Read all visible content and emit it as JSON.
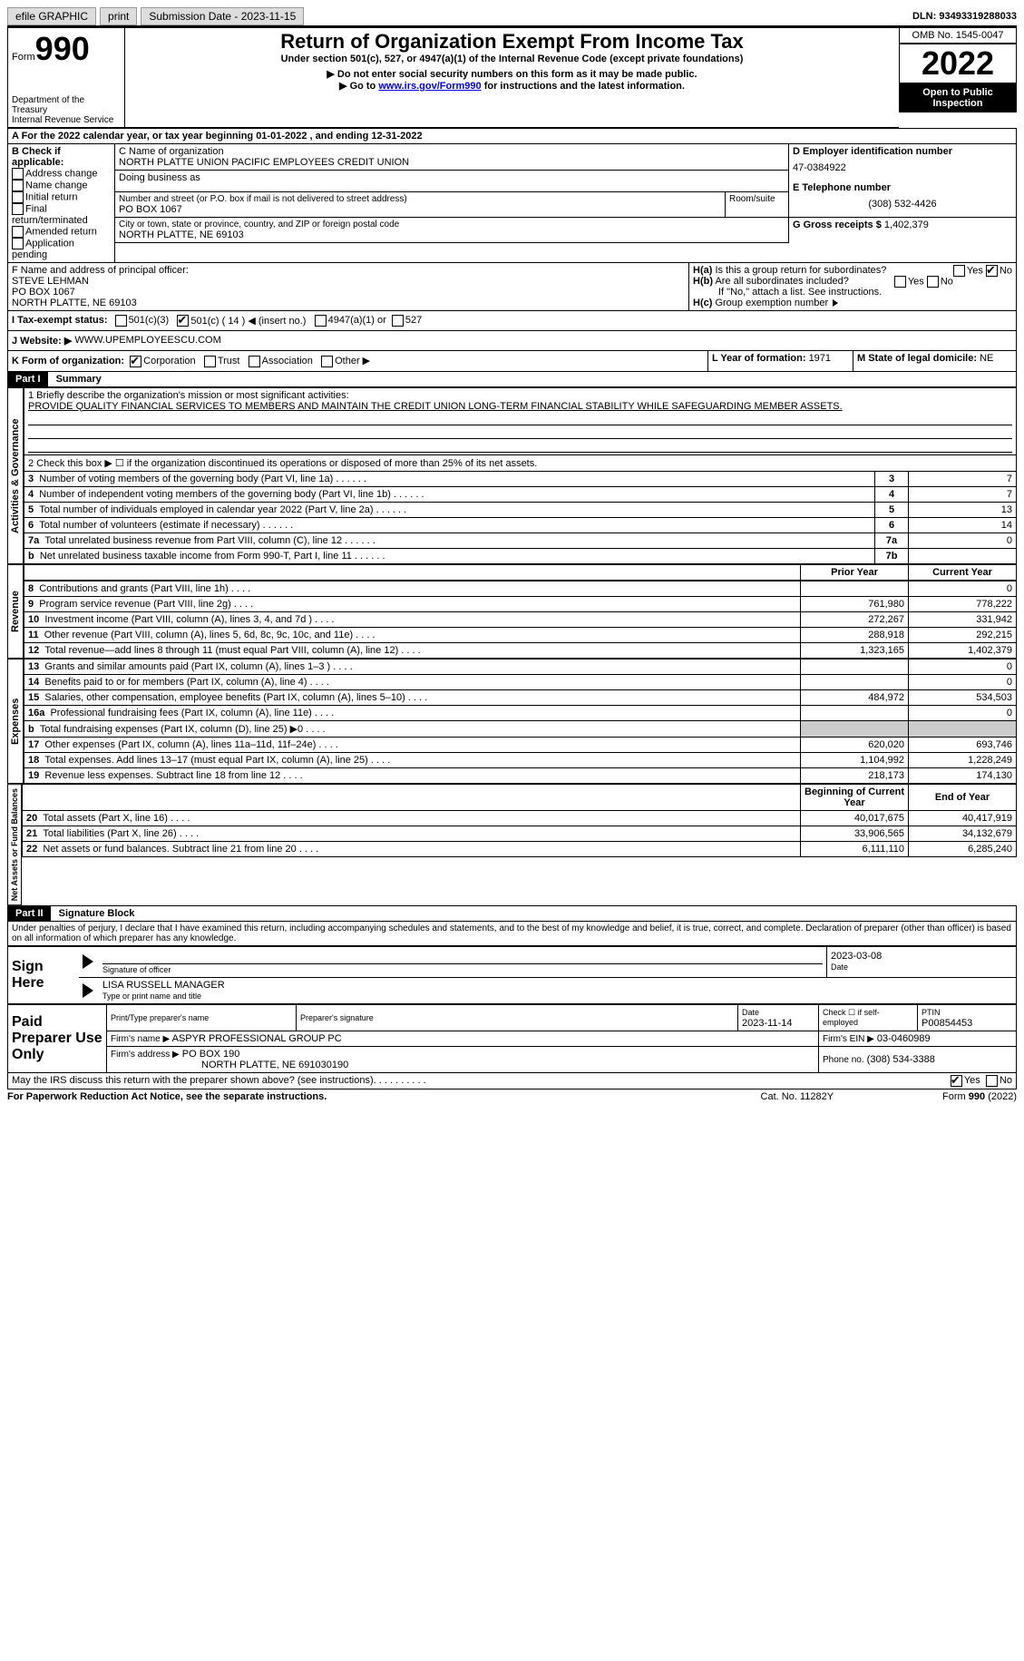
{
  "topbar": {
    "efile": "efile GRAPHIC",
    "print": "print",
    "subdate_label": "Submission Date - ",
    "subdate": "2023-11-15",
    "dln_label": "DLN: ",
    "dln": "93493319288033"
  },
  "header": {
    "form_label": "Form",
    "form_no": "990",
    "dept": "Department of the Treasury\nInternal Revenue Service",
    "title": "Return of Organization Exempt From Income Tax",
    "subtitle": "Under section 501(c), 527, or 4947(a)(1) of the Internal Revenue Code (except private foundations)",
    "warn1": "▶ Do not enter social security numbers on this form as it may be made public.",
    "warn2_pre": "▶ Go to ",
    "warn2_link": "www.irs.gov/Form990",
    "warn2_post": " for instructions and the latest information.",
    "omb": "OMB No. 1545-0047",
    "year": "2022",
    "inspection": "Open to Public Inspection"
  },
  "sectionA": {
    "a_line": "A For the 2022 calendar year, or tax year beginning 01-01-2022    , and ending 12-31-2022",
    "b_label": "B Check if applicable:",
    "b_items": [
      "Address change",
      "Name change",
      "Initial return",
      "Final return/terminated",
      "Amended return",
      "Application pending"
    ],
    "c_label": "C Name of organization",
    "c_name": "NORTH PLATTE UNION PACIFIC EMPLOYEES CREDIT UNION",
    "dba": "Doing business as",
    "addr_label": "Number and street (or P.O. box if mail is not delivered to street address)",
    "addr": "PO BOX 1067",
    "room_label": "Room/suite",
    "city_label": "City or town, state or province, country, and ZIP or foreign postal code",
    "city": "NORTH PLATTE, NE   69103",
    "d_label": "D Employer identification number",
    "ein": "47-0384922",
    "e_label": "E Telephone number",
    "phone": "(308) 532-4426",
    "g_label": "G Gross receipts $",
    "g_val": "1,402,379",
    "f_label": "F  Name and address of principal officer:",
    "f_name": "STEVE LEHMAN",
    "f_addr1": "PO BOX 1067",
    "f_addr2": "NORTH PLATTE, NE   69103",
    "ha": "H(a)  Is this a group return for subordinates?",
    "hb": "H(b)  Are all subordinates included?",
    "hb_note": "If \"No,\" attach a list. See instructions.",
    "hc": "H(c)  Group exemption number ▶",
    "yes": "Yes",
    "no": "No",
    "i_label": "I   Tax-exempt status:",
    "i_501c3": "501(c)(3)",
    "i_501c": "501(c) ( 14 ) ◀ (insert no.)",
    "i_4947": "4947(a)(1) or",
    "i_527": "527",
    "j_label": "J  Website: ▶",
    "j_val": "WWW.UPEMPLOYEESCU.COM",
    "k_label": "K Form of organization:",
    "k_corp": "Corporation",
    "k_trust": "Trust",
    "k_assoc": "Association",
    "k_other": "Other ▶",
    "l_label": "L Year of formation: ",
    "l_val": "1971",
    "m_label": "M State of legal domicile: ",
    "m_val": "NE"
  },
  "part1": {
    "title": "Part I",
    "heading": "Summary",
    "sections": {
      "gov": "Activities & Governance",
      "rev": "Revenue",
      "exp": "Expenses",
      "net": "Net Assets or Fund Balances"
    },
    "l1_label": "1  Briefly describe the organization's mission or most significant activities:",
    "l1_text": "PROVIDE QUALITY FINANCIAL SERVICES TO MEMBERS AND MAINTAIN THE CREDIT UNION LONG-TERM FINANCIAL STABILITY WHILE SAFEGUARDING MEMBER ASSETS.",
    "l2": "2   Check this box ▶ ☐  if the organization discontinued its operations or disposed of more than 25% of its net assets.",
    "rows_gov": [
      {
        "n": "3",
        "t": "Number of voting members of the governing body (Part VI, line 1a)",
        "r": "3",
        "v": "7"
      },
      {
        "n": "4",
        "t": "Number of independent voting members of the governing body (Part VI, line 1b)",
        "r": "4",
        "v": "7"
      },
      {
        "n": "5",
        "t": "Total number of individuals employed in calendar year 2022 (Part V, line 2a)",
        "r": "5",
        "v": "13"
      },
      {
        "n": "6",
        "t": "Total number of volunteers (estimate if necessary)",
        "r": "6",
        "v": "14"
      },
      {
        "n": "7a",
        "t": "Total unrelated business revenue from Part VIII, column (C), line 12",
        "r": "7a",
        "v": "0"
      },
      {
        "n": " b",
        "t": "Net unrelated business taxable income from Form 990-T, Part I, line 11",
        "r": "7b",
        "v": ""
      }
    ],
    "col_prior": "Prior Year",
    "col_curr": "Current Year",
    "rows_rev": [
      {
        "n": "8",
        "t": "Contributions and grants (Part VIII, line 1h)",
        "p": "",
        "c": "0"
      },
      {
        "n": "9",
        "t": "Program service revenue (Part VIII, line 2g)",
        "p": "761,980",
        "c": "778,222"
      },
      {
        "n": "10",
        "t": "Investment income (Part VIII, column (A), lines 3, 4, and 7d )",
        "p": "272,267",
        "c": "331,942"
      },
      {
        "n": "11",
        "t": "Other revenue (Part VIII, column (A), lines 5, 6d, 8c, 9c, 10c, and 11e)",
        "p": "288,918",
        "c": "292,215"
      },
      {
        "n": "12",
        "t": "Total revenue—add lines 8 through 11 (must equal Part VIII, column (A), line 12)",
        "p": "1,323,165",
        "c": "1,402,379"
      }
    ],
    "rows_exp": [
      {
        "n": "13",
        "t": "Grants and similar amounts paid (Part IX, column (A), lines 1–3 )",
        "p": "",
        "c": "0"
      },
      {
        "n": "14",
        "t": "Benefits paid to or for members (Part IX, column (A), line 4)",
        "p": "",
        "c": "0"
      },
      {
        "n": "15",
        "t": "Salaries, other compensation, employee benefits (Part IX, column (A), lines 5–10)",
        "p": "484,972",
        "c": "534,503"
      },
      {
        "n": "16a",
        "t": "Professional fundraising fees (Part IX, column (A), line 11e)",
        "p": "",
        "c": "0"
      },
      {
        "n": " b",
        "t": "Total fundraising expenses (Part IX, column (D), line 25) ▶0",
        "p": "shade",
        "c": "shade"
      },
      {
        "n": "17",
        "t": "Other expenses (Part IX, column (A), lines 11a–11d, 11f–24e)",
        "p": "620,020",
        "c": "693,746"
      },
      {
        "n": "18",
        "t": "Total expenses. Add lines 13–17 (must equal Part IX, column (A), line 25)",
        "p": "1,104,992",
        "c": "1,228,249"
      },
      {
        "n": "19",
        "t": "Revenue less expenses. Subtract line 18 from line 12",
        "p": "218,173",
        "c": "174,130"
      }
    ],
    "col_beg": "Beginning of Current Year",
    "col_end": "End of Year",
    "rows_net": [
      {
        "n": "20",
        "t": "Total assets (Part X, line 16)",
        "p": "40,017,675",
        "c": "40,417,919"
      },
      {
        "n": "21",
        "t": "Total liabilities (Part X, line 26)",
        "p": "33,906,565",
        "c": "34,132,679"
      },
      {
        "n": "22",
        "t": "Net assets or fund balances. Subtract line 21 from line 20",
        "p": "6,111,110",
        "c": "6,285,240"
      }
    ]
  },
  "part2": {
    "title": "Part II",
    "heading": "Signature Block",
    "decl": "Under penalties of perjury, I declare that I have examined this return, including accompanying schedules and statements, and to the best of my knowledge and belief, it is true, correct, and complete. Declaration of preparer (other than officer) is based on all information of which preparer has any knowledge.",
    "sign_here": "Sign Here",
    "sig_officer": "Signature of officer",
    "sig_date": "2023-03-08",
    "date_lbl": "Date",
    "officer_name": "LISA RUSSELL  MANAGER",
    "type_name": "Type or print name and title",
    "paid": "Paid Preparer Use Only",
    "prep_name_lbl": "Print/Type preparer's name",
    "prep_sig_lbl": "Preparer's signature",
    "prep_date_lbl": "Date",
    "prep_date": "2023-11-14",
    "self_emp": "Check ☐ if self-employed",
    "ptin_lbl": "PTIN",
    "ptin": "P00854453",
    "firm_name_lbl": "Firm's name    ▶",
    "firm_name": "ASPYR PROFESSIONAL GROUP PC",
    "firm_ein_lbl": "Firm's EIN ▶",
    "firm_ein": "03-0460989",
    "firm_addr_lbl": "Firm's address ▶",
    "firm_addr": "PO BOX 190",
    "firm_city": "NORTH PLATTE, NE   691030190",
    "firm_phone_lbl": "Phone no.",
    "firm_phone": "(308) 534-3388",
    "discuss": "May the IRS discuss this return with the preparer shown above? (see instructions)",
    "paperwork": "For Paperwork Reduction Act Notice, see the separate instructions.",
    "catno": "Cat. No. 11282Y",
    "formfoot": "Form 990 (2022)"
  }
}
